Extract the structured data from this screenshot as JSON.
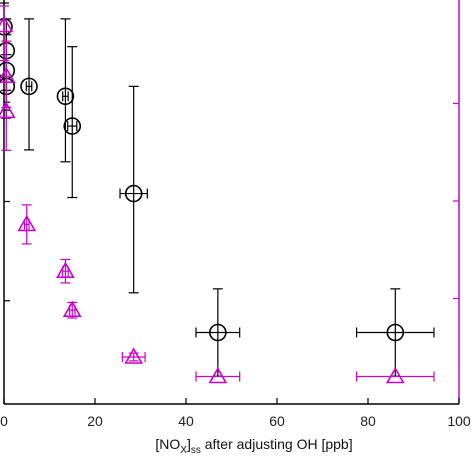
{
  "chart_data": {
    "type": "scatter",
    "xlabel": {
      "main": "[NO",
      "sub1": "X",
      "close": "]",
      "sub2": "ss",
      "rest": " after adjusting OH [ppb]"
    },
    "xlim": [
      0,
      100
    ],
    "xticks": [
      0,
      20,
      40,
      60,
      80,
      100
    ],
    "grid": false,
    "colors": {
      "left_axis": "#000000",
      "right_axis": "#cc00cc"
    },
    "series": [
      {
        "marker": "circle",
        "color": "#000000",
        "axis": "left",
        "points": [
          {
            "x": 0,
            "y": 0.94,
            "ylo": 0.8,
            "yhi": 1.0,
            "xerr": 0
          },
          {
            "x": 0.5,
            "y": 0.88,
            "ylo": 0.78,
            "yhi": 0.96,
            "xerr": 0
          },
          {
            "x": 0.5,
            "y": 0.83,
            "ylo": 0.73,
            "yhi": 0.92,
            "xerr": 0
          },
          {
            "x": 0.5,
            "y": 0.79,
            "ylo": 0.71,
            "yhi": 0.87,
            "xerr": 0
          },
          {
            "x": 5.5,
            "y": 0.79,
            "ylo": 0.63,
            "yhi": 0.96,
            "xerr": 0.6
          },
          {
            "x": 13.5,
            "y": 0.765,
            "ylo": 0.6,
            "yhi": 0.96,
            "xerr": 0.6
          },
          {
            "x": 15,
            "y": 0.69,
            "ylo": 0.51,
            "yhi": 0.89,
            "xerr": 1.0
          },
          {
            "x": 28.5,
            "y": 0.52,
            "ylo": 0.27,
            "yhi": 0.79,
            "xerr": 3.0
          },
          {
            "x": 47,
            "y": 0.17,
            "ylo": 0.06,
            "yhi": 0.28,
            "xerr": 4.8
          },
          {
            "x": 86,
            "y": 0.17,
            "ylo": 0.06,
            "yhi": 0.28,
            "xerr": 8.5
          }
        ]
      },
      {
        "marker": "triangle",
        "color": "#cc00cc",
        "axis": "right",
        "points": [
          {
            "x": 0,
            "y": 0.95,
            "ylo": 0.86,
            "yhi": 1.0,
            "xerr": 0
          },
          {
            "x": 0.5,
            "y": 0.82,
            "ylo": 0.74,
            "yhi": 0.91,
            "xerr": 0
          },
          {
            "x": 0.5,
            "y": 0.73,
            "ylo": 0.63,
            "yhi": 0.82,
            "xerr": 0
          },
          {
            "x": 5,
            "y": 0.44,
            "ylo": 0.39,
            "yhi": 0.49,
            "xerr": 0.5
          },
          {
            "x": 13.5,
            "y": 0.32,
            "ylo": 0.29,
            "yhi": 0.35,
            "xerr": 0.6
          },
          {
            "x": 15,
            "y": 0.22,
            "ylo": 0.2,
            "yhi": 0.24,
            "xerr": 0.6
          },
          {
            "x": 28.5,
            "y": 0.1,
            "ylo": 0.09,
            "yhi": 0.11,
            "xerr": 2.5
          },
          {
            "x": 47,
            "y": 0.05,
            "ylo": 0.05,
            "yhi": 0.05,
            "xerr": 4.8
          },
          {
            "x": 86,
            "y": 0.05,
            "ylo": 0.05,
            "yhi": 0.05,
            "xerr": 8.5
          }
        ]
      }
    ]
  }
}
